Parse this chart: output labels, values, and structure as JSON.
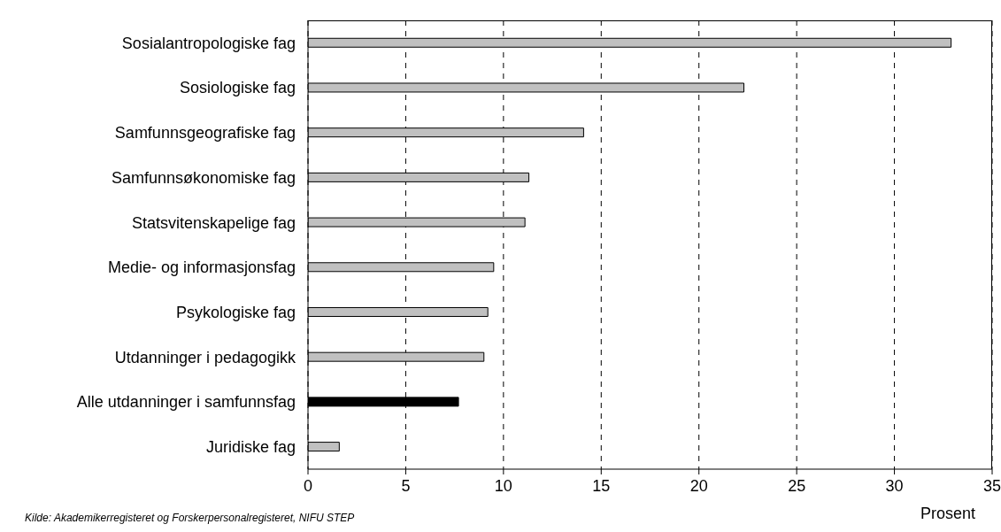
{
  "chart_data": {
    "type": "bar",
    "orientation": "horizontal",
    "categories": [
      "Sosialantropologiske fag",
      "Sosiologiske fag",
      "Samfunnsgeografiske fag",
      "Samfunnsøkonomiske fag",
      "Statsvitenskapelige fag",
      "Medie- og informasjonsfag",
      "Psykologiske fag",
      "Utdanninger i pedagogikk",
      "Alle utdanninger i samfunnsfag",
      "Juridiske fag"
    ],
    "values": [
      32.9,
      22.3,
      14.1,
      11.3,
      11.1,
      9.5,
      9.2,
      9.0,
      7.7,
      1.6
    ],
    "colors": [
      "#c0c0c0",
      "#c0c0c0",
      "#c0c0c0",
      "#c0c0c0",
      "#c0c0c0",
      "#c0c0c0",
      "#c0c0c0",
      "#c0c0c0",
      "#000000",
      "#c0c0c0"
    ],
    "xlim": [
      0,
      35
    ],
    "xticks": [
      0,
      5,
      10,
      15,
      20,
      25,
      30,
      35
    ],
    "grid": "x",
    "xlabel": "Prosent",
    "annotations": [
      "Kilde: Akademikerregisteret og Forskerpersonalregisteret, NIFU STEP"
    ]
  }
}
